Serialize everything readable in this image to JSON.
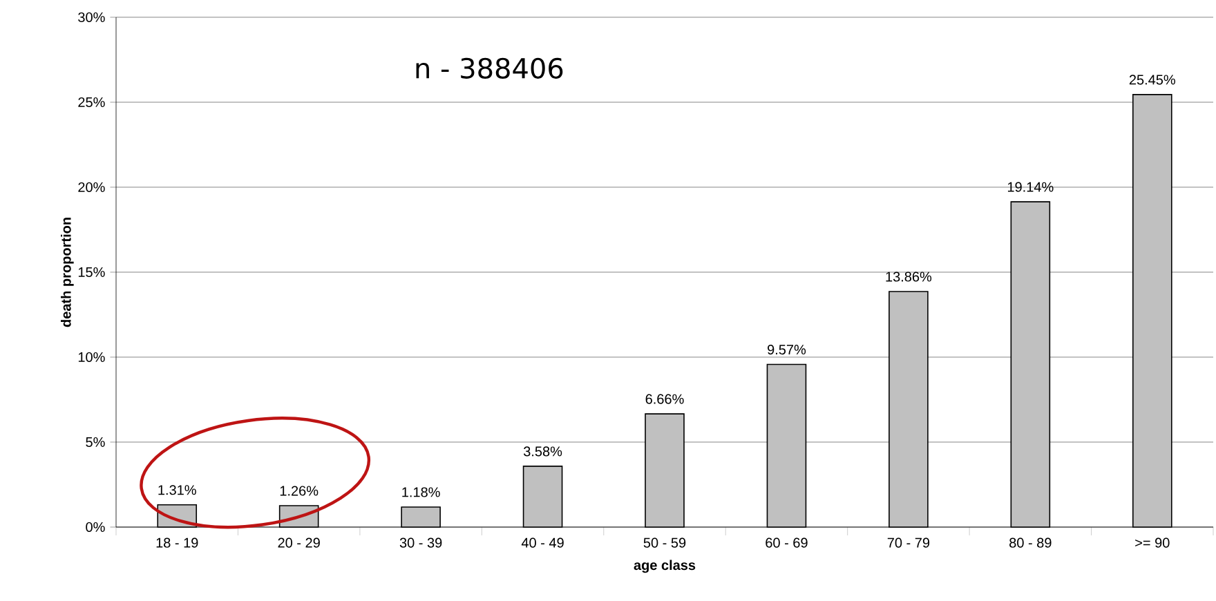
{
  "chart_data": {
    "type": "bar",
    "xlabel": "age class",
    "ylabel": "death proportion",
    "categories": [
      "18 - 19",
      "20 - 29",
      "30 - 39",
      "40 - 49",
      "50 - 59",
      "60 - 69",
      "70 - 79",
      "80 - 89",
      ">= 90"
    ],
    "values": [
      1.31,
      1.26,
      1.18,
      3.58,
      6.66,
      9.57,
      13.86,
      19.14,
      25.45
    ],
    "color": "#c0c0c0",
    "ylim": [
      0,
      30
    ],
    "yticks": [
      {
        "value": 0,
        "label": "0%"
      },
      {
        "value": 5,
        "label": "5%"
      },
      {
        "value": 10,
        "label": "10%"
      },
      {
        "value": 15,
        "label": "15%"
      },
      {
        "value": 20,
        "label": "20%"
      },
      {
        "value": 25,
        "label": "25%"
      },
      {
        "value": 30,
        "label": "30%"
      }
    ],
    "value_labels": [
      "1.31%",
      "1.26%",
      "1.18%",
      "3.58%",
      "6.66%",
      "9.57%",
      "13.86%",
      "19.14%",
      "25.45%"
    ],
    "annotations": [
      "n - 388406"
    ],
    "grid": "y"
  }
}
